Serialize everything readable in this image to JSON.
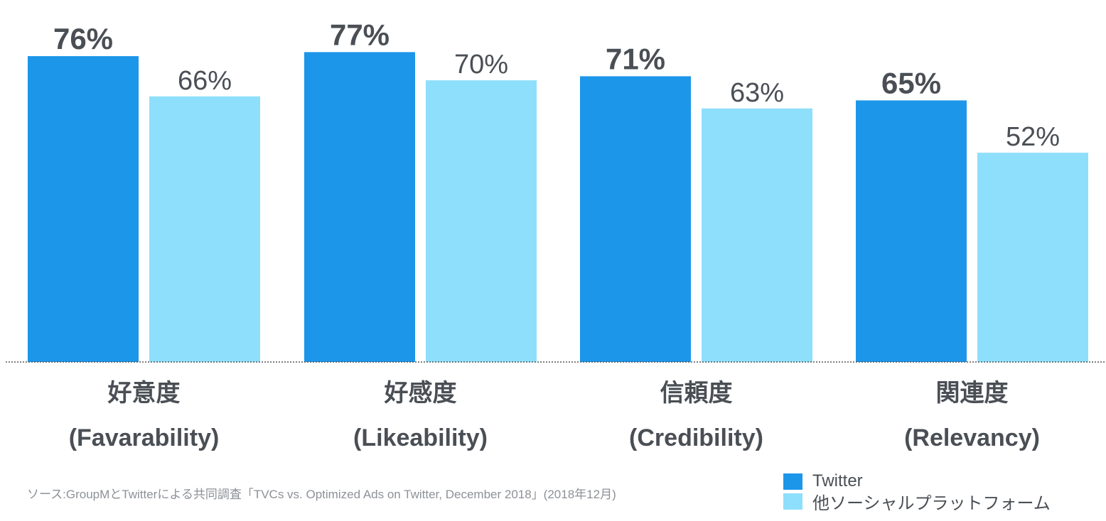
{
  "chart_data": {
    "type": "bar",
    "categories": [
      {
        "jp": "好意度",
        "en": "(Favarability)"
      },
      {
        "jp": "好感度",
        "en": "(Likeability)"
      },
      {
        "jp": "信頼度",
        "en": "(Credibility)"
      },
      {
        "jp": "関連度",
        "en": "(Relevancy)"
      }
    ],
    "series": [
      {
        "name": "Twitter",
        "values": [
          76,
          77,
          71,
          65
        ],
        "labels": [
          "76%",
          "77%",
          "71%",
          "65%"
        ],
        "color": "#1c96e9"
      },
      {
        "name": "他ソーシャルプラットフォーム",
        "values": [
          66,
          70,
          63,
          52
        ],
        "labels": [
          "66%",
          "70%",
          "63%",
          "52%"
        ],
        "color": "#8edffc"
      }
    ],
    "ylim": [
      0,
      100
    ],
    "grid": false,
    "legend_position": "bottom-right"
  },
  "source_note": "ソース:GroupMとTwitterによる共同調査「TVCs vs. Optimized Ads on Twitter, December 2018」(2018年12月)",
  "text_color": "#4a4f55"
}
